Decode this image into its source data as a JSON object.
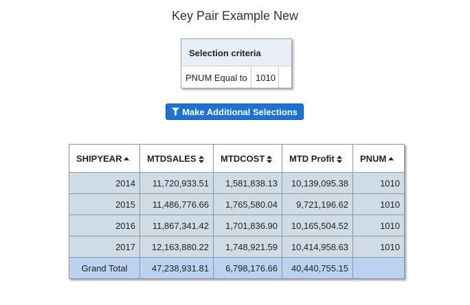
{
  "page": {
    "title": "Key Pair Example New"
  },
  "criteria": {
    "header": "Selection criteria",
    "field": "PNUM Equal to",
    "value": "1010"
  },
  "action": {
    "label": "Make Additional Selections",
    "icon": "filter-icon"
  },
  "table": {
    "columns": [
      {
        "label": "SHIPYEAR",
        "sort": "asc"
      },
      {
        "label": "MTDSALES",
        "sort": "both"
      },
      {
        "label": "MTDCOST",
        "sort": "both"
      },
      {
        "label": "MTD Profit",
        "sort": "both"
      },
      {
        "label": "PNUM",
        "sort": "asc"
      }
    ],
    "rows": [
      [
        "2014",
        "11,720,933.51",
        "1,581,838.13",
        "10,139,095.38",
        "1010"
      ],
      [
        "2015",
        "11,486,776.66",
        "1,765,580.04",
        "9,721,196.62",
        "1010"
      ],
      [
        "2016",
        "11,867,341.42",
        "1,701,836.90",
        "10,165,504.52",
        "1010"
      ],
      [
        "2017",
        "12,163,880.22",
        "1,748,921.59",
        "10,414,958.63",
        "1010"
      ]
    ],
    "total": [
      "Grand Total",
      "47,238,931.81",
      "6,798,176.66",
      "40,440,755.15",
      ""
    ]
  },
  "colors": {
    "button": "#1a73d9",
    "row_bg": "#cfdce6",
    "total_bg": "#b9d3f0",
    "criteria_head_bg": "#e8eef7"
  }
}
